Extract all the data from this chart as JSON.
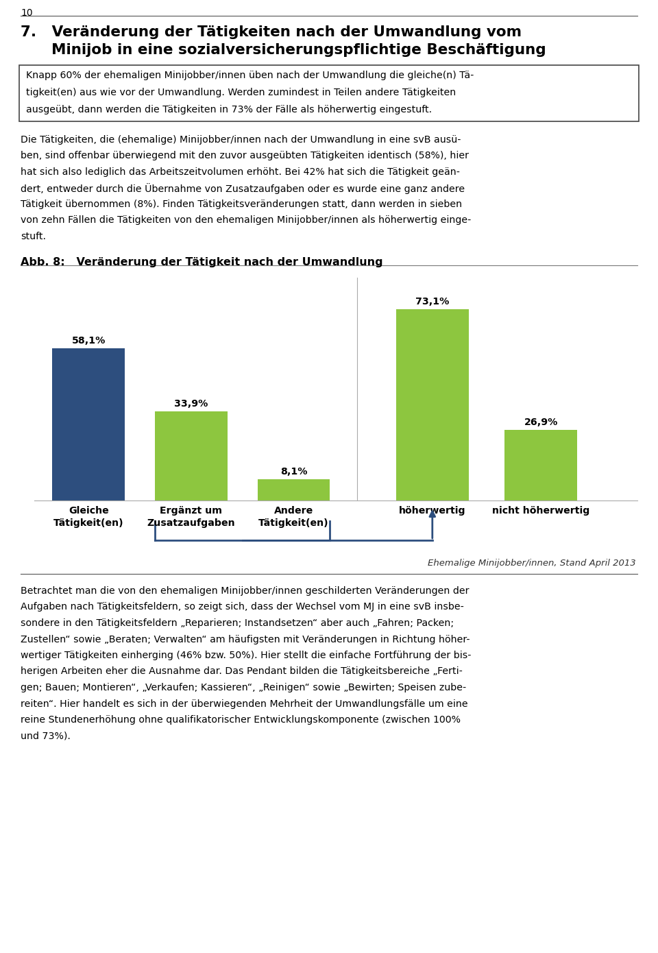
{
  "page_number": "10",
  "section_title_line1": "7.   Veränderung der Tätigkeiten nach der Umwandlung vom",
  "section_title_line2": "      Minijob in eine sozialversicherungspflichtige Beschäftigung",
  "box_text_line1": "Knapp 60% der ehemaligen Minijobber/innen üben nach der Umwandlung die gleiche(n) Tä-",
  "box_text_line2": "tigkeit(en) aus wie vor der Umwandlung. Werden zumindest in Teilen andere Tätigkeiten",
  "box_text_line3": "ausgeübt, dann werden die Tätigkeiten in 73% der Fälle als höherwertig eingestuft.",
  "body_text1_line1": "Die Tätigkeiten, die (ehemalige) Minijobber/innen nach der Umwandlung in eine svB ausü-",
  "body_text1_line2": "ben, sind offenbar überwiegend mit den zuvor ausgeübten Tätigkeiten identisch (58%), hier",
  "body_text1_line3": "hat sich also lediglich das Arbeitszeitvolumen erhöht. Bei 42% hat sich die Tätigkeit geän-",
  "body_text1_line4": "dert, entweder durch die Übernahme von Zusatzaufgaben oder es wurde eine ganz andere",
  "body_text1_line5": "Tätigkeit übernommen (8%). Finden Tätigkeitsveränderungen statt, dann werden in sieben",
  "body_text1_line6": "von zehn Fällen die Tätigkeiten von den ehemaligen Minijobber/innen als höherwertig einge-",
  "body_text1_line7": "stuft.",
  "figure_title": "Abb. 8:   Veränderung der Tätigkeit nach der Umwandlung",
  "bars": [
    {
      "label": "Gleiche\nTätigkeit(en)",
      "value": 58.1,
      "color": "#2d4e7e"
    },
    {
      "label": "Ergänzt um\nZusatzaufgaben",
      "value": 33.9,
      "color": "#8dc63f"
    },
    {
      "label": "Andere\nTätigkeit(en)",
      "value": 8.1,
      "color": "#8dc63f"
    },
    {
      "label": "höherwertig",
      "value": 73.1,
      "color": "#8dc63f"
    },
    {
      "label": "nicht höherwertig",
      "value": 26.9,
      "color": "#8dc63f"
    }
  ],
  "source_text": "Ehemalige Minijobber/innen, Stand April 2013",
  "body_text2_line1": "Betrachtet man die von den ehemaligen Minijobber/innen geschilderten Veränderungen der",
  "body_text2_line2": "Aufgaben nach Tätigkeitsfeldern, so zeigt sich, dass der Wechsel vom MJ in eine svB insbe-",
  "body_text2_line3": "sondere in den Tätigkeitsfeldern „Reparieren; Instandsetzen“ aber auch „Fahren; Packen;",
  "body_text2_line4": "Zustellen“ sowie „Beraten; Verwalten“ am häufigsten mit Veränderungen in Richtung höher-",
  "body_text2_line5": "wertiger Tätigkeiten einherging (46% bzw. 50%). Hier stellt die einfache Fortführung der bis-",
  "body_text2_line6": "herigen Arbeiten eher die Ausnahme dar. Das Pendant bilden die Tätigkeitsbereiche „Ferti-",
  "body_text2_line7": "gen; Bauen; Montieren“, „Verkaufen; Kassieren“, „Reinigen“ sowie „Bewirten; Speisen zube-",
  "body_text2_line8": "reiten“. Hier handelt es sich in der überwiegenden Mehrheit der Umwandlungsfälle um eine",
  "body_text2_line9": "reine Stundenerhöhung ohne qualifikatorischer Entwicklungskomponente (zwischen 100%",
  "body_text2_line10": "und 73%).",
  "ylim": [
    0,
    85
  ],
  "arrow_color": "#2d4e7e",
  "bg_color": "#ffffff",
  "text_color": "#000000"
}
